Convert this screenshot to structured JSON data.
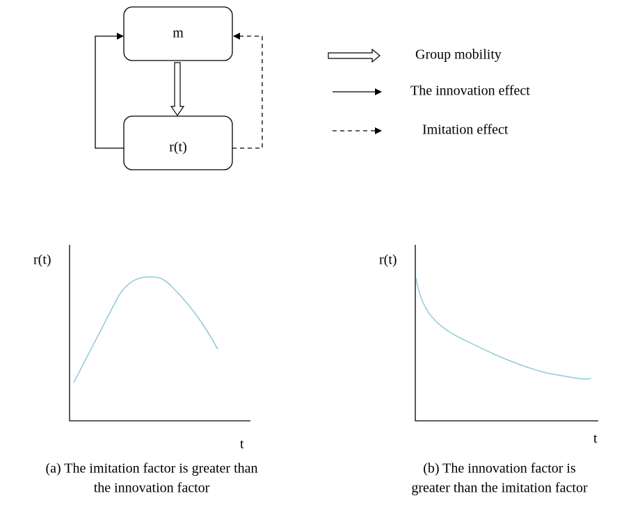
{
  "nodes": [
    {
      "label": "m"
    },
    {
      "label": "r(t)"
    }
  ],
  "legend": [
    {
      "label": "Group mobility"
    },
    {
      "label": "The innovation effect"
    },
    {
      "label": "Imitation effect"
    }
  ],
  "plots": [
    {
      "y_label": "r(t)",
      "x_label": "t",
      "caption": [
        "(a) The imitation factor is greater than",
        "the innovation factor"
      ]
    },
    {
      "y_label": "r(t)",
      "x_label": "t",
      "caption": [
        "(b) The innovation factor is",
        "greater than the imitation factor"
      ]
    }
  ]
}
